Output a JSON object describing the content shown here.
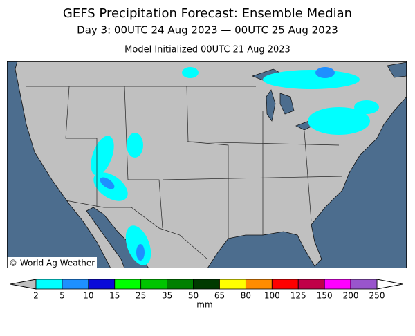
{
  "header": {
    "title": "GEFS Precipitation Forecast: Ensemble Median",
    "subtitle": "Day 3: 00UTC 24 Aug 2023 — 00UTC 25 Aug 2023",
    "init": "Model Initialized 00UTC 21 Aug 2023"
  },
  "map": {
    "credit": "© World Ag Weather"
  },
  "colorbar": {
    "ticks": [
      2,
      5,
      10,
      15,
      25,
      35,
      50,
      65,
      80,
      100,
      125,
      150,
      200,
      250
    ],
    "colors": [
      "#00ffff",
      "#1e90ff",
      "#0a0ad8",
      "#00ff00",
      "#00c400",
      "#008000",
      "#003a00",
      "#ffff00",
      "#ff8c00",
      "#ff0000",
      "#c00048",
      "#ff00ff",
      "#9955cc"
    ],
    "under_color": "#c0c0c0",
    "over_color": "#ffffff",
    "unit": "mm"
  }
}
